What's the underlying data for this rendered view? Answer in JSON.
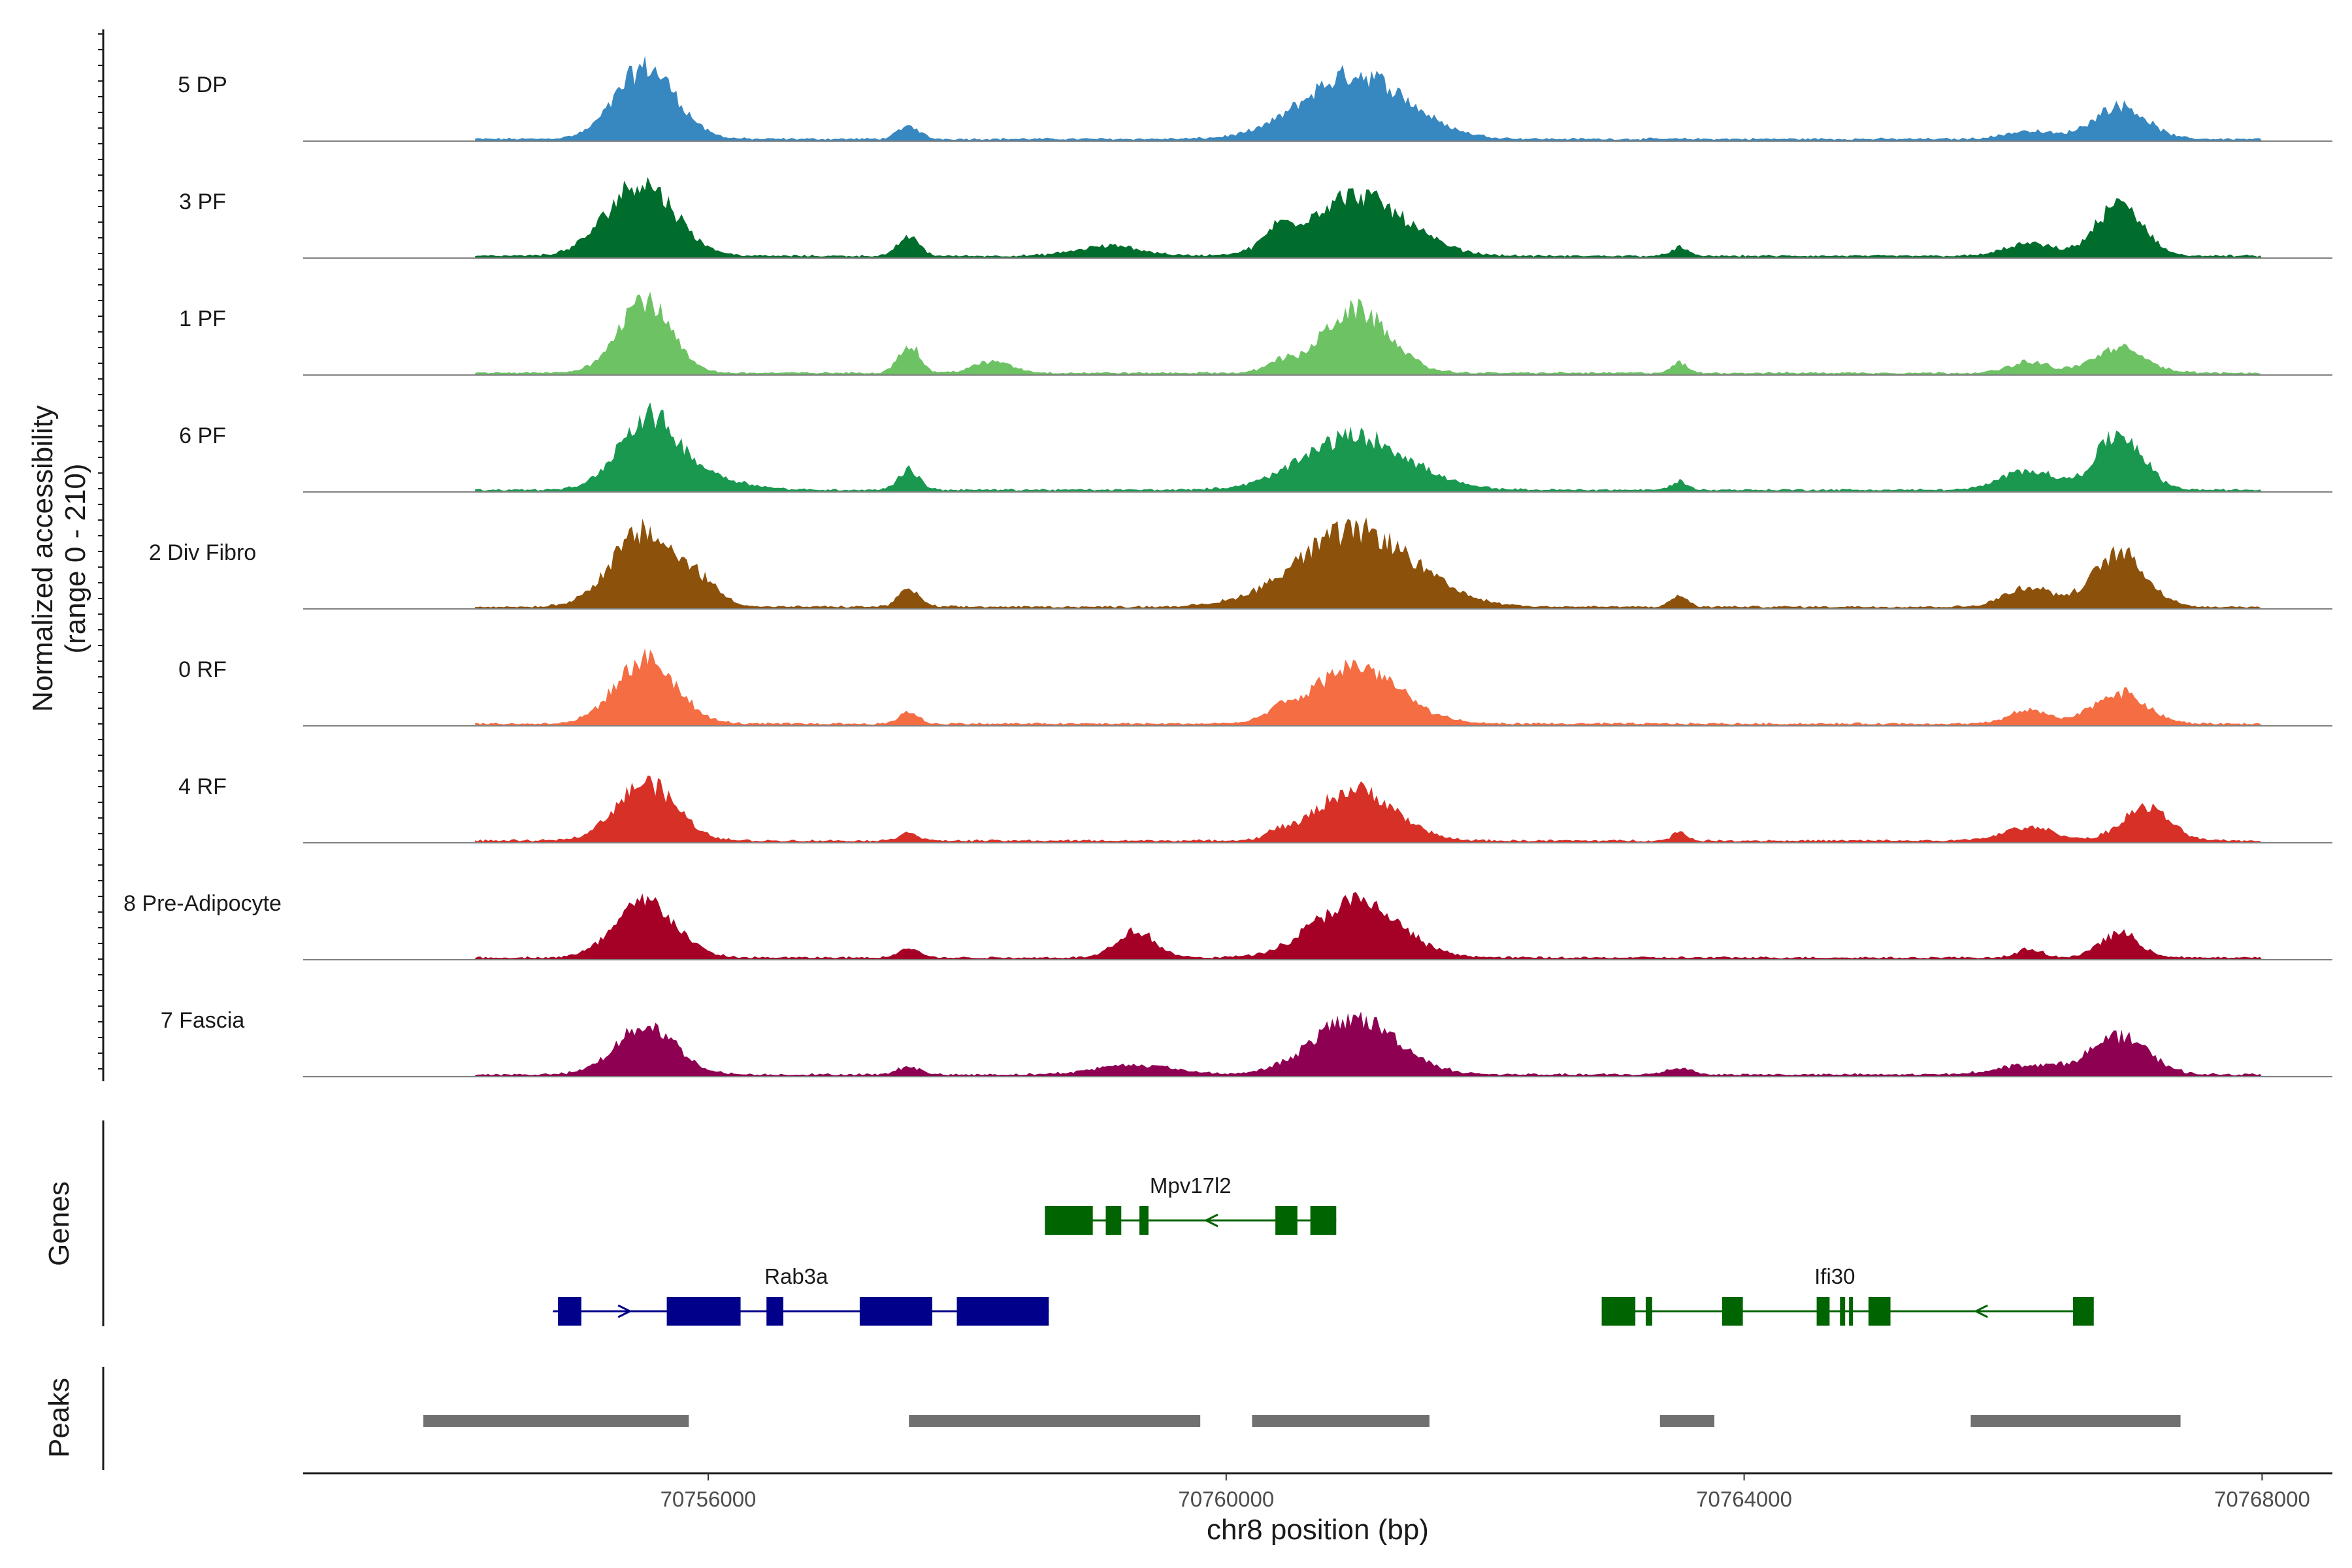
{
  "chart_data": {
    "type": "area",
    "title": "",
    "region": {
      "chromosome": "chr8",
      "start": 70753800,
      "end": 70768400
    },
    "ylabel_line1": "Normalized accessibility",
    "ylabel_line2": "(range 0 - 210)",
    "ylim": [
      0,
      210
    ],
    "xlabel": "chr8 position (bp)",
    "x_ticks": [
      70756000,
      70760000,
      70764000,
      70768000
    ],
    "x_tick_labels": [
      "70756000",
      "70760000",
      "70764000",
      "70768000"
    ],
    "genes_label": "Genes",
    "peaks_label": "Peaks",
    "tracks": [
      {
        "name": "5 DP",
        "color": "#3787C0",
        "peaks": [
          [
            70755520,
            160,
            230
          ],
          [
            70757550,
            30,
            80
          ],
          [
            70761000,
            145,
            400
          ],
          [
            70766900,
            75,
            200
          ],
          [
            70766200,
            18,
            180
          ]
        ]
      },
      {
        "name": "3 PF",
        "color": "#006D2C",
        "peaks": [
          [
            70755480,
            165,
            260
          ],
          [
            70757550,
            45,
            80
          ],
          [
            70759100,
            22,
            250
          ],
          [
            70760400,
            35,
            100
          ],
          [
            70761000,
            135,
            380
          ],
          [
            70763500,
            20,
            60
          ],
          [
            70766200,
            28,
            180
          ],
          [
            70766900,
            115,
            180
          ]
        ]
      },
      {
        "name": "1 PF",
        "color": "#6DC264",
        "peaks": [
          [
            70755500,
            165,
            200
          ],
          [
            70757550,
            65,
            80
          ],
          [
            70758200,
            25,
            150
          ],
          [
            70760400,
            22,
            100
          ],
          [
            70761000,
            140,
            260
          ],
          [
            70763500,
            22,
            60
          ],
          [
            70766200,
            25,
            150
          ],
          [
            70766900,
            55,
            200
          ]
        ]
      },
      {
        "name": "6 PF",
        "color": "#1A9850",
        "peaks": [
          [
            70755520,
            150,
            220
          ],
          [
            70755900,
            35,
            300
          ],
          [
            70757550,
            45,
            80
          ],
          [
            70761000,
            120,
            400
          ],
          [
            70763500,
            20,
            60
          ],
          [
            70766200,
            45,
            200
          ],
          [
            70766900,
            125,
            180
          ]
        ]
      },
      {
        "name": "2 Div Fibro",
        "color": "#8C510A",
        "peaks": [
          [
            70755500,
            165,
            250
          ],
          [
            70755950,
            40,
            150
          ],
          [
            70757550,
            40,
            80
          ],
          [
            70761000,
            170,
            450
          ],
          [
            70763500,
            25,
            60
          ],
          [
            70766200,
            45,
            180
          ],
          [
            70766900,
            120,
            200
          ]
        ]
      },
      {
        "name": "0 RF",
        "color": "#F46D43",
        "peaks": [
          [
            70755520,
            145,
            230
          ],
          [
            70757550,
            28,
            70
          ],
          [
            70760400,
            18,
            80
          ],
          [
            70761000,
            130,
            330
          ],
          [
            70766200,
            30,
            150
          ],
          [
            70766900,
            70,
            200
          ]
        ]
      },
      {
        "name": "4 RF",
        "color": "#D73027",
        "peaks": [
          [
            70755520,
            130,
            230
          ],
          [
            70757550,
            20,
            70
          ],
          [
            70760400,
            14,
            80
          ],
          [
            70761000,
            115,
            300
          ],
          [
            70763500,
            18,
            60
          ],
          [
            70766200,
            30,
            200
          ],
          [
            70767100,
            75,
            180
          ]
        ]
      },
      {
        "name": "8 Pre-Adipocyte",
        "color": "#A50026",
        "peaks": [
          [
            70755520,
            125,
            230
          ],
          [
            70757550,
            22,
            80
          ],
          [
            70759300,
            60,
            150
          ],
          [
            70761000,
            125,
            330
          ],
          [
            70766200,
            18,
            100
          ],
          [
            70766900,
            55,
            150
          ]
        ]
      },
      {
        "name": "7 Fascia",
        "color": "#8E0152",
        "peaks": [
          [
            70755520,
            110,
            230
          ],
          [
            70757550,
            20,
            80
          ],
          [
            70759300,
            22,
            300
          ],
          [
            70761000,
            125,
            330
          ],
          [
            70763500,
            15,
            100
          ],
          [
            70766200,
            22,
            250
          ],
          [
            70766900,
            85,
            220
          ]
        ]
      }
    ],
    "genes": [
      {
        "name": "Mpv17l2",
        "strand": "-",
        "row": 1,
        "color": "#006400",
        "start": 70758600,
        "end": 70760850,
        "exons": [
          [
            70758600,
            70758970
          ],
          [
            70759070,
            70759190
          ],
          [
            70759330,
            70759400
          ],
          [
            70760380,
            70760550
          ],
          [
            70760650,
            70760850
          ]
        ]
      },
      {
        "name": "Rab3a",
        "strand": "+",
        "row": 2,
        "color": "#00008B",
        "start": 70754800,
        "end": 70758630,
        "exons": [
          [
            70754840,
            70755020
          ],
          [
            70755680,
            70756250
          ],
          [
            70756450,
            70756580
          ],
          [
            70757170,
            70757730
          ],
          [
            70757920,
            70758630
          ]
        ]
      },
      {
        "name": "Ifi30",
        "strand": "-",
        "row": 2,
        "color": "#006400",
        "start": 70762900,
        "end": 70766700,
        "exons": [
          [
            70762900,
            70763160
          ],
          [
            70763240,
            70763290
          ],
          [
            70763830,
            70763990
          ],
          [
            70764560,
            70764660
          ],
          [
            70764740,
            70764780
          ],
          [
            70764810,
            70764840
          ],
          [
            70764960,
            70765130
          ],
          [
            70766540,
            70766700
          ]
        ]
      }
    ],
    "peaks": [
      [
        70753800,
        70755850
      ],
      [
        70757550,
        70759800
      ],
      [
        70760200,
        70761570
      ],
      [
        70763350,
        70763770
      ],
      [
        70765750,
        70767370
      ]
    ]
  }
}
